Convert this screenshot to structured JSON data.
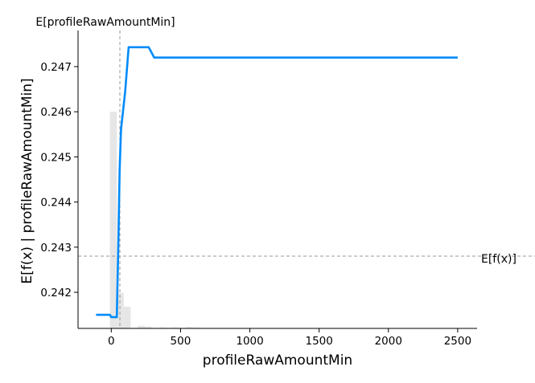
{
  "chart_data": {
    "type": "line",
    "xlabel": "profileRawAmountMin",
    "ylabel": "E[f(x) | profileRawAmountMin]",
    "xlim": [
      -240,
      2640
    ],
    "ylim": [
      241.2,
      247.8
    ],
    "y_scale_note": "values in units of 0.001",
    "x_ticks": [
      0,
      500,
      1000,
      1500,
      2000,
      2500
    ],
    "y_ticks": [
      0.242,
      0.243,
      0.244,
      0.245,
      0.246,
      0.247
    ],
    "y_tick_labels": [
      "0.242",
      "0.243",
      "0.244",
      "0.245",
      "0.246",
      "0.247"
    ],
    "x_tick_labels": [
      "0",
      "500",
      "1000",
      "1500",
      "2000",
      "2500"
    ],
    "grid": false,
    "series": [
      {
        "name": "",
        "color": "#008bfb",
        "x": [
          -110,
          -10,
          0,
          10,
          40,
          50,
          60,
          70,
          100,
          125,
          270,
          310,
          2500
        ],
        "y": [
          241.5,
          241.5,
          241.45,
          241.45,
          241.45,
          242.9,
          244.7,
          245.6,
          246.45,
          247.43,
          247.43,
          247.2,
          247.2
        ]
      }
    ],
    "histogram": {
      "color": "#e6e6e6",
      "bin_edges": [
        -10,
        40,
        90,
        140,
        190,
        240,
        290,
        340,
        390,
        440,
        490,
        540,
        590,
        640,
        690,
        2340,
        2390
      ],
      "heights": [
        246.0,
        241.99,
        241.68,
        241.2,
        241.26,
        241.24,
        241.2,
        241.22,
        241.21,
        241.22,
        241.21,
        241.23,
        241.22,
        241.21,
        241.21,
        241.21
      ],
      "baseline": 241.2
    },
    "reference_lines": {
      "expected_x": 62,
      "expected_x_label": "E[profileRawAmountMin]",
      "expected_fx": 242.8,
      "expected_fx_label": "E[f(x)]"
    }
  }
}
